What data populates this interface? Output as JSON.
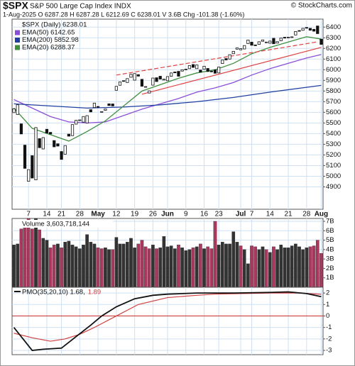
{
  "header": {
    "symbol": "$SPX",
    "name": "S&P 500 Large Cap Index INDX",
    "source": "© StockCharts.com",
    "quote": "1-Aug-2025  O 6287.28  H 6287.28  L 6212.69  C 6238.01  V 3.6B  Chg -101.38 (-1.60%)"
  },
  "chart_data": [
    {
      "type": "candlestick",
      "legend_title": "$SPX (Daily) 6238.01",
      "categories": [
        null,
        null,
        null,
        null,
        "7",
        null,
        null,
        null,
        null,
        "14",
        null,
        null,
        null,
        "21",
        null,
        null,
        null,
        null,
        "28",
        null,
        null,
        null,
        null,
        "May",
        null,
        null,
        null,
        null,
        "12",
        null,
        null,
        null,
        null,
        "19",
        null,
        null,
        null,
        null,
        "26",
        null,
        null,
        null,
        "Jun",
        null,
        null,
        null,
        null,
        "9",
        null,
        null,
        null,
        null,
        "16",
        null,
        null,
        null,
        "23",
        null,
        null,
        null,
        null,
        null,
        "Jul",
        null,
        null,
        "7",
        null,
        null,
        null,
        null,
        "14",
        null,
        null,
        null,
        null,
        "21",
        null,
        null,
        null,
        null,
        "28",
        null,
        null,
        null,
        "Aug"
      ],
      "open": [
        5597,
        5580,
        5492,
        5292,
        4953,
        5193,
        4966,
        5353,
        5256,
        5441,
        5412,
        5335,
        5305,
        5232,
        5207,
        5395,
        5381,
        5489,
        5529,
        5508,
        5500,
        5625,
        5645,
        5655,
        5605,
        5619,
        5680,
        5679,
        5807,
        5854,
        5897,
        5880,
        5929,
        5902,
        5954,
        5910,
        5841,
        5781,
        5855,
        5925,
        5939,
        5903,
        5897,
        5939,
        5979,
        5985,
        5987,
        6005,
        6010,
        6049,
        6010,
        5997,
        6005,
        6012,
        5987,
        5999,
        5970,
        6058,
        6105,
        6100,
        6150,
        6193,
        6187,
        6195,
        6246,
        6259,
        6233,
        6238,
        6267,
        6256,
        6249,
        6295,
        6250,
        6272,
        6305,
        6305,
        6306,
        6326,
        6368,
        6370,
        6397,
        6389,
        6380,
        6411,
        6287
      ],
      "close": [
        5633,
        5671,
        5397,
        5074,
        5062,
        4983,
        5457,
        5268,
        5363,
        5406,
        5397,
        5276,
        5283,
        5158,
        5288,
        5376,
        5485,
        5525,
        5529,
        5561,
        5569,
        5604,
        5687,
        5650,
        5607,
        5631,
        5664,
        5660,
        5844,
        5886,
        5892,
        5917,
        5958,
        5964,
        5940,
        5845,
        5842,
        5802,
        5922,
        5889,
        5912,
        5912,
        5936,
        5970,
        5971,
        5939,
        6000,
        6006,
        6039,
        6022,
        6045,
        5977,
        6033,
        5983,
        5981,
        5967,
        6025,
        6092,
        6092,
        6141,
        6173,
        6205,
        6198,
        6227,
        6279,
        6230,
        6226,
        6263,
        6280,
        6260,
        6269,
        6244,
        6264,
        6297,
        6297,
        6306,
        6309,
        6359,
        6363,
        6389,
        6390,
        6371,
        6362,
        6339,
        6238
      ],
      "series": [
        {
          "name": "EMA(50) 6142.65",
          "color": "#8a4fd8",
          "x": [
            0,
            5,
            10,
            15,
            20,
            25,
            30,
            35,
            40,
            45,
            50,
            55,
            60,
            65,
            70,
            75,
            80,
            84
          ],
          "values": [
            5720,
            5640,
            5560,
            5510,
            5500,
            5510,
            5570,
            5630,
            5680,
            5730,
            5790,
            5830,
            5880,
            5950,
            6010,
            6060,
            6110,
            6143
          ]
        },
        {
          "name": "EMA(200) 5852.98",
          "color": "#2040a0",
          "x": [
            0,
            10,
            20,
            30,
            40,
            50,
            60,
            70,
            84
          ],
          "values": [
            5680,
            5660,
            5640,
            5650,
            5670,
            5700,
            5740,
            5790,
            5853
          ]
        },
        {
          "name": "EMA(20) 6288.37",
          "color": "#3f8f3f",
          "x": [
            0,
            5,
            10,
            15,
            20,
            25,
            30,
            35,
            40,
            45,
            50,
            55,
            60,
            65,
            70,
            75,
            80,
            84
          ],
          "values": [
            5640,
            5450,
            5390,
            5330,
            5420,
            5520,
            5660,
            5800,
            5860,
            5920,
            5970,
            6000,
            6060,
            6150,
            6210,
            6260,
            6310,
            6288
          ]
        }
      ],
      "trendlines": [
        {
          "color": "#e04040",
          "dashed": true,
          "x": [
            28,
            83
          ],
          "values": [
            5950,
            6262
          ]
        },
        {
          "color": "#e04040",
          "dashed": false,
          "x": [
            35,
            84
          ],
          "values": [
            5770,
            6210
          ]
        }
      ],
      "ylim": [
        4690,
        6475
      ],
      "yticks": [
        4900,
        5000,
        5100,
        5200,
        5300,
        5400,
        5500,
        5600,
        5700,
        5800,
        5900,
        6000,
        6100,
        6200,
        6300,
        6400
      ],
      "grid": true
    },
    {
      "type": "bar",
      "title": "Volume 3,603,718,144",
      "up_color": "#a8385e",
      "down_color": "#333333",
      "values": [
        4.5,
        4.6,
        6.2,
        7.0,
        7.3,
        6.2,
        7.3,
        6.1,
        5.2,
        5.0,
        4.2,
        4.5,
        4.6,
        4.2,
        4.8,
        4.9,
        4.5,
        4.3,
        4.1,
        4.5,
        5.6,
        4.8,
        4.6,
        4.2,
        4.1,
        4.2,
        4.0,
        4.0,
        5.3,
        4.6,
        4.6,
        4.8,
        5.2,
        4.2,
        4.6,
        5.0,
        4.3,
        4.1,
        4.5,
        4.1,
        4.2,
        5.4,
        4.3,
        4.4,
        4.1,
        4.5,
        4.2,
        3.9,
        4.0,
        4.2,
        4.3,
        4.6,
        4.1,
        4.3,
        4.1,
        7.0,
        4.5,
        4.8,
        4.6,
        4.6,
        5.9,
        4.8,
        4.4,
        4.0,
        2.5,
        4.4,
        4.3,
        4.0,
        4.3,
        4.0,
        3.7,
        4.3,
        4.0,
        4.5,
        4.2,
        4.2,
        4.4,
        4.6,
        4.3,
        4.0,
        4.2,
        4.3,
        4.4,
        5.0,
        3.6
      ],
      "ylim": [
        0,
        7.3
      ],
      "yticks": [
        {
          "value": 1,
          "label": "1B"
        },
        {
          "value": 2,
          "label": "2B"
        },
        {
          "value": 3,
          "label": "3B"
        },
        {
          "value": 4,
          "label": "4B"
        },
        {
          "value": 5,
          "label": "5B"
        },
        {
          "value": 6,
          "label": "6B"
        },
        {
          "value": 7,
          "label": "7B"
        }
      ],
      "grid": true
    },
    {
      "type": "line",
      "title": "PMO(35,20,10) 1.68,",
      "signal_label": "1.89",
      "series": [
        {
          "color": "#d04040",
          "x": [
            0,
            5,
            10,
            14,
            18,
            22,
            28,
            34,
            42,
            50,
            55,
            62,
            70,
            78,
            84
          ],
          "values": [
            -1.5,
            -1.9,
            -2.2,
            -2.0,
            -1.6,
            -1.0,
            0,
            1.0,
            1.6,
            1.8,
            1.9,
            1.95,
            2.0,
            2.0,
            1.89
          ]
        },
        {
          "color": "#111111",
          "x": [
            0,
            3,
            5,
            8,
            13,
            17,
            21,
            24,
            28,
            33,
            38,
            42,
            50,
            60,
            70,
            75,
            80,
            84
          ],
          "values": [
            -1.0,
            -2.2,
            -3.0,
            -2.9,
            -2.8,
            -1.8,
            -0.8,
            0,
            0.8,
            1.5,
            1.8,
            1.9,
            2.0,
            2.0,
            2.05,
            2.1,
            1.95,
            1.68
          ]
        }
      ],
      "reference_line": {
        "value": 0,
        "color": "#d04040"
      },
      "ylim": [
        -3.37,
        2.5
      ],
      "yticks": [
        -3,
        -2,
        -1,
        0,
        1,
        2
      ],
      "grid": true
    }
  ]
}
